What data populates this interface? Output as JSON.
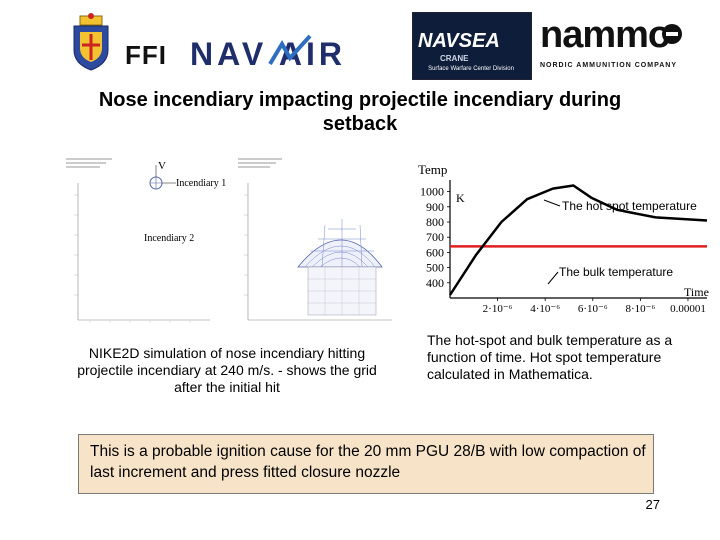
{
  "logos": {
    "ffi": "FFI",
    "navair": "NAV AIR",
    "navsea_title": "NAVSEA",
    "navsea_crane": "CRANE",
    "navsea_sub": "Surface Warfare Center Division",
    "nammo": "nammo",
    "nammo_sub": "NORDIC AMMUNITION COMPANY"
  },
  "title": "Nose incendiary impacting projectile incendiary during setback",
  "simulation": {
    "label_v": "V",
    "label_incendiary1": "Incendiary 1",
    "label_incendiary2": "Incendiary 2"
  },
  "caption_left": "NIKE2D simulation of nose incendiary hitting projectile incendiary at 240 m/s. - shows the grid after the initial hit",
  "caption_right": "The hot-spot and bulk temperature as a function of time. Hot spot temperature calculated in Mathematica.",
  "chart_data": {
    "type": "line",
    "ylabel": "Temp",
    "yunit": "K",
    "xlabel": "Time",
    "y_ticks": [
      "1000",
      "900",
      "800",
      "700",
      "600",
      "500",
      "400"
    ],
    "x_ticks": [
      "2·10⁻⁶",
      "4·10⁻⁶",
      "6·10⁻⁶",
      "8·10⁻⁶",
      "0.00001"
    ],
    "ylim": [
      300,
      1050
    ],
    "series": [
      {
        "name": "The hot spot temperature",
        "x": [
          0.0,
          1e-06,
          2e-06,
          3e-06,
          4e-06,
          4.8e-06,
          5.5e-06,
          6.5e-06,
          8e-06,
          1e-05
        ],
        "y": [
          320,
          580,
          800,
          950,
          1020,
          1040,
          960,
          880,
          830,
          810
        ]
      },
      {
        "name": "The bulk temperature",
        "x": [
          0.0,
          1e-05
        ],
        "y": [
          640,
          640
        ]
      }
    ],
    "annotations": [
      "The hot spot temperature",
      "The bulk temperature"
    ]
  },
  "conclusion": "This is a probable ignition cause for the 20 mm PGU 28/B with low compaction of last increment and press fitted closure nozzle",
  "page_number": "27"
}
